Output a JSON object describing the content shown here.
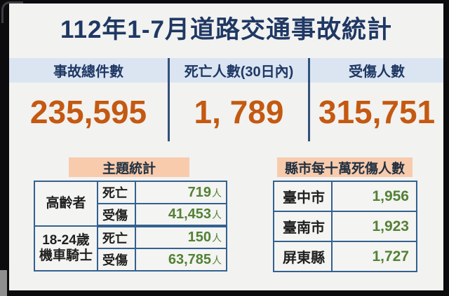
{
  "title": "112年1-7月道路交通事故統計",
  "summary_stats": [
    {
      "label": "事故總件數",
      "value": "235,595"
    },
    {
      "label": "死亡人數(30日內)",
      "value": "1, 789"
    },
    {
      "label": "受傷人數",
      "value": "315,751"
    }
  ],
  "topic_section": {
    "header": "主題統計",
    "groups": [
      {
        "category": "高齡者",
        "rows": [
          {
            "metric": "死亡",
            "value": "719",
            "unit": "人"
          },
          {
            "metric": "受傷",
            "value": "41,453",
            "unit": "人"
          }
        ]
      },
      {
        "category": "18-24歲\n機車騎士",
        "rows": [
          {
            "metric": "死亡",
            "value": "150",
            "unit": "人"
          },
          {
            "metric": "受傷",
            "value": "63,785",
            "unit": "人"
          }
        ]
      }
    ]
  },
  "county_section": {
    "header": "縣市每十萬死傷人數",
    "rows": [
      {
        "name": "臺中市",
        "value": "1,956"
      },
      {
        "name": "臺南市",
        "value": "1,923"
      },
      {
        "name": "屏東縣",
        "value": "1,727"
      }
    ]
  },
  "colors": {
    "accent_orange": "#c45911",
    "accent_green": "#538135",
    "navy": "#1f3864",
    "peach": "#f8cbad",
    "light_blue_band": "#dbe5f2",
    "table_border": "#33618f",
    "card_background": "#f2f2f0",
    "frame_background": "#0c0c0e"
  }
}
